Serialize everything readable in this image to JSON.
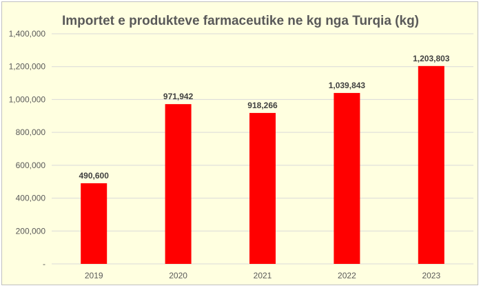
{
  "chart_data": {
    "type": "bar",
    "title": "Importet e produkteve farmaceutike ne kg nga Turqia (kg)",
    "categories": [
      "2019",
      "2020",
      "2021",
      "2022",
      "2023"
    ],
    "values": [
      490600,
      971942,
      918266,
      1039843,
      1203803
    ],
    "data_labels": [
      "490,600",
      "971,942",
      "918,266",
      "1,039,843",
      "1,203,803"
    ],
    "ylim": [
      0,
      1400000
    ],
    "yticks": [
      0,
      200000,
      400000,
      600000,
      800000,
      1000000,
      1200000,
      1400000
    ],
    "ytick_labels": [
      "-",
      "200,000",
      "400,000",
      "600,000",
      "800,000",
      "1,000,000",
      "1,200,000",
      "1,400,000"
    ],
    "grid": true,
    "legend": "none",
    "colors": {
      "bar": "#ff0000",
      "background": "#ffffe0",
      "grid": "#d9d9d9",
      "text": "#595959"
    }
  }
}
